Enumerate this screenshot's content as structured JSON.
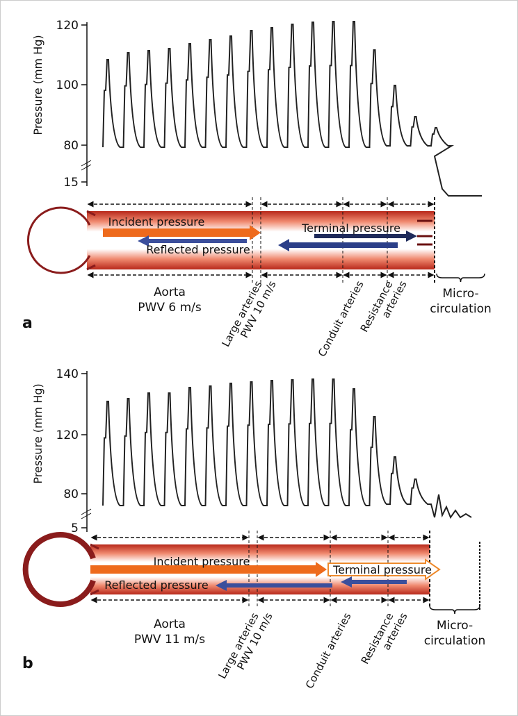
{
  "panels": [
    {
      "label": "a",
      "y_axis_label": "Pressure (mm Hg)",
      "yticks": [
        120,
        100,
        80,
        15
      ],
      "incident": "Incident pressure",
      "reflected": "Reflected pressure",
      "terminal": "Terminal pressure",
      "aorta": [
        "Aorta",
        "PWV 6 m/s"
      ],
      "large_arteries": [
        "Large arteries",
        "PWV 10 m/s"
      ],
      "conduit": "Conduit arteries",
      "resistance": [
        "Resistance",
        "arteries"
      ],
      "micro": [
        "Micro-",
        "circulation"
      ]
    },
    {
      "label": "b",
      "y_axis_label": "Pressure (mm Hg)",
      "yticks": [
        140,
        120,
        80,
        5
      ],
      "incident": "Incident pressure",
      "reflected": "Reflected pressure",
      "terminal": "Terminal pressure",
      "aorta": [
        "Aorta",
        "PWV 11 m/s"
      ],
      "large_arteries": [
        "Large arteries",
        "PWV 10 m/s"
      ],
      "conduit": "Conduit arteries",
      "resistance": [
        "Resistance",
        "arteries"
      ],
      "micro": [
        "Micro-",
        "circulation"
      ]
    }
  ]
}
